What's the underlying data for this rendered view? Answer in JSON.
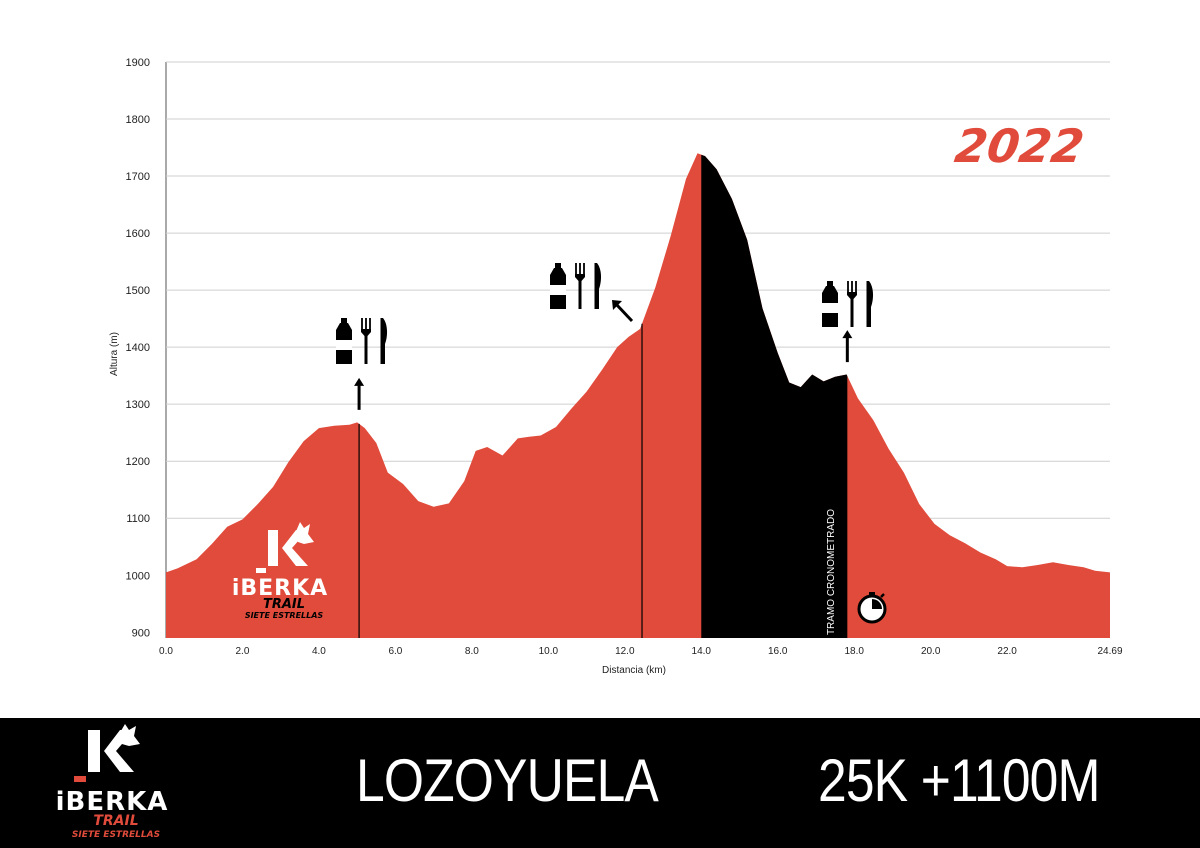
{
  "chart_data": {
    "type": "area",
    "title": "",
    "year_label": "2022",
    "xlabel": "Distancia (km)",
    "ylabel": "Altura (m)",
    "xlim": [
      0,
      24.69
    ],
    "ylim": [
      890,
      1900
    ],
    "x_ticks": [
      "0.0",
      "2.0",
      "4.0",
      "6.0",
      "8.0",
      "10.0",
      "12.0",
      "14.0",
      "16.0",
      "18.0",
      "20.0",
      "22.0",
      "24.69"
    ],
    "y_ticks": [
      "900",
      "1000",
      "1100",
      "1200",
      "1300",
      "1400",
      "1500",
      "1600",
      "1700",
      "1800",
      "1900"
    ],
    "grid": true,
    "colors": {
      "profile": "#e14b3b",
      "timed_segment": "#000000",
      "footer": "#000000"
    },
    "profile": {
      "x": [
        0,
        0.3,
        0.8,
        1.2,
        1.6,
        2.0,
        2.4,
        2.8,
        3.2,
        3.6,
        4.0,
        4.4,
        4.8,
        5.0,
        5.2,
        5.5,
        5.8,
        6.2,
        6.6,
        7.0,
        7.4,
        7.8,
        8.1,
        8.4,
        8.8,
        9.2,
        9.5,
        9.8,
        10.2,
        10.6,
        11.0,
        11.4,
        11.8,
        12.1,
        12.4,
        12.8,
        13.2,
        13.6,
        13.9,
        14.1,
        14.4,
        14.8,
        15.2,
        15.6,
        16.0,
        16.3,
        16.6,
        16.9,
        17.2,
        17.5,
        17.8,
        18.1,
        18.5,
        18.9,
        19.3,
        19.7,
        20.1,
        20.5,
        20.9,
        21.3,
        21.7,
        22.0,
        22.4,
        22.8,
        23.2,
        23.6,
        24.0,
        24.3,
        24.69
      ],
      "y": [
        1005,
        1012,
        1028,
        1055,
        1085,
        1098,
        1125,
        1155,
        1198,
        1235,
        1258,
        1262,
        1264,
        1268,
        1258,
        1232,
        1180,
        1160,
        1130,
        1120,
        1126,
        1165,
        1218,
        1225,
        1210,
        1240,
        1243,
        1245,
        1260,
        1292,
        1322,
        1360,
        1400,
        1418,
        1432,
        1505,
        1595,
        1695,
        1740,
        1735,
        1712,
        1660,
        1588,
        1468,
        1390,
        1338,
        1330,
        1352,
        1340,
        1348,
        1352,
        1310,
        1272,
        1222,
        1180,
        1125,
        1090,
        1070,
        1056,
        1040,
        1028,
        1016,
        1014,
        1018,
        1023,
        1018,
        1014,
        1008,
        1005
      ]
    },
    "timed_segment": {
      "x_start": 14.0,
      "x_end": 17.82,
      "label": "TRAMO CRONOMETRADO"
    },
    "aid_stations": [
      {
        "x": 5.05,
        "items": [
          "water-bottle-icon",
          "fork-icon",
          "knife-icon"
        ]
      },
      {
        "x": 12.45,
        "items": [
          "water-bottle-icon",
          "fork-icon",
          "knife-icon"
        ]
      },
      {
        "x": 17.82,
        "items": [
          "water-bottle-icon",
          "fork-icon",
          "knife-icon"
        ]
      }
    ]
  },
  "logo": {
    "brand": "iBERKA",
    "line2": "TRAIL",
    "line3": "SIETE ESTRELLAS"
  },
  "footer": {
    "location": "LOZOYUELA",
    "race": "25K +1100M"
  }
}
